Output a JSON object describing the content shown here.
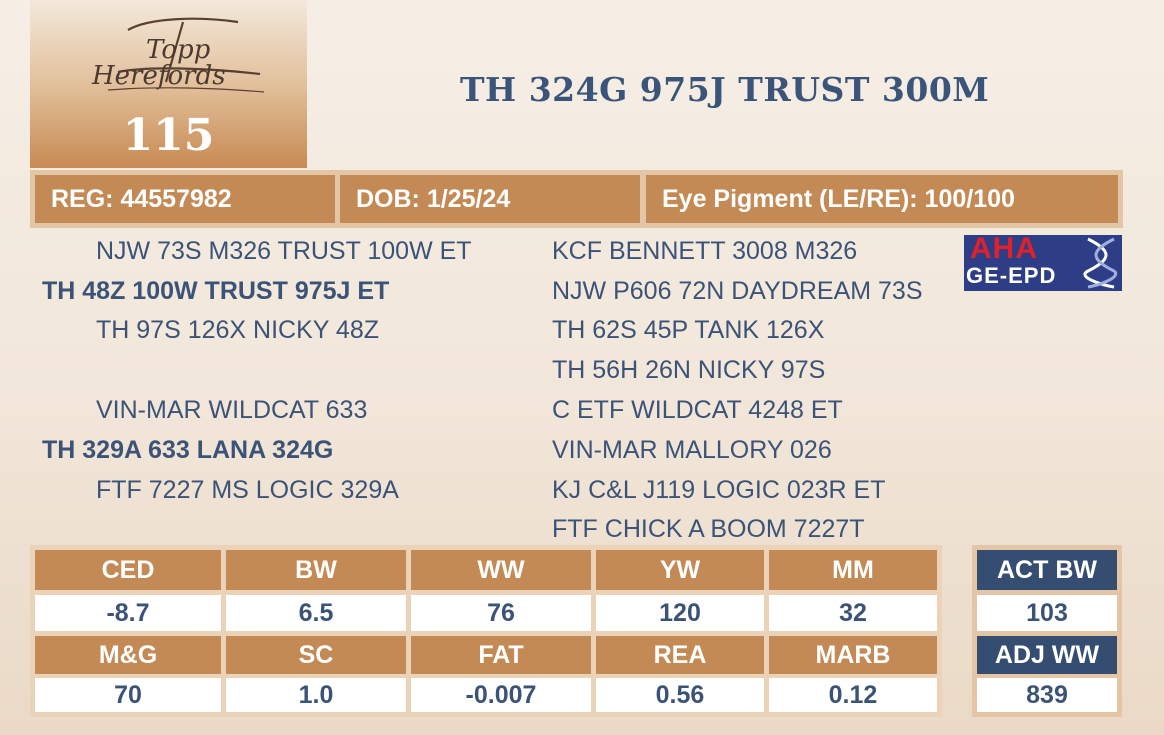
{
  "lot_number": "115",
  "title": "TH 324G 975J TRUST 300M",
  "info": {
    "reg": "REG: 44557982",
    "dob": "DOB: 1/25/24",
    "eye": "Eye Pigment (LE/RE): 100/100"
  },
  "pedigree": {
    "left": [
      "NJW 73S M326 TRUST 100W ET",
      "TH 48Z 100W TRUST 975J ET",
      "TH 97S 126X NICKY 48Z",
      "VIN-MAR WILDCAT 633",
      "TH 329A 633 LANA 324G",
      "FTF 7227 MS LOGIC 329A"
    ],
    "right": [
      "KCF BENNETT 3008 M326",
      "NJW P606 72N DAYDREAM 73S",
      "TH 62S 45P TANK 126X",
      "TH 56H 26N NICKY 97S",
      "C ETF WILDCAT 4248 ET",
      "VIN-MAR MALLORY 026",
      "KJ C&L J119 LOGIC 023R ET",
      "FTF CHICK A BOOM 7227T"
    ]
  },
  "badge": {
    "top": "AHA",
    "bottom": "GE-EPD"
  },
  "epd": {
    "row1_headers": [
      "CED",
      "BW",
      "WW",
      "YW",
      "MM"
    ],
    "row1_values": [
      "-8.7",
      "6.5",
      "76",
      "120",
      "32"
    ],
    "row2_headers": [
      "M&G",
      "SC",
      "FAT",
      "REA",
      "MARB"
    ],
    "row2_values": [
      "70",
      "1.0",
      "-0.007",
      "0.56",
      "0.12"
    ]
  },
  "side": {
    "act_bw_label": "ACT BW",
    "act_bw_value": "103",
    "adj_ww_label": "ADJ WW",
    "adj_ww_value": "839"
  },
  "colors": {
    "brown": "#c48a55",
    "navy": "#364d72",
    "text": "#3c5378"
  }
}
